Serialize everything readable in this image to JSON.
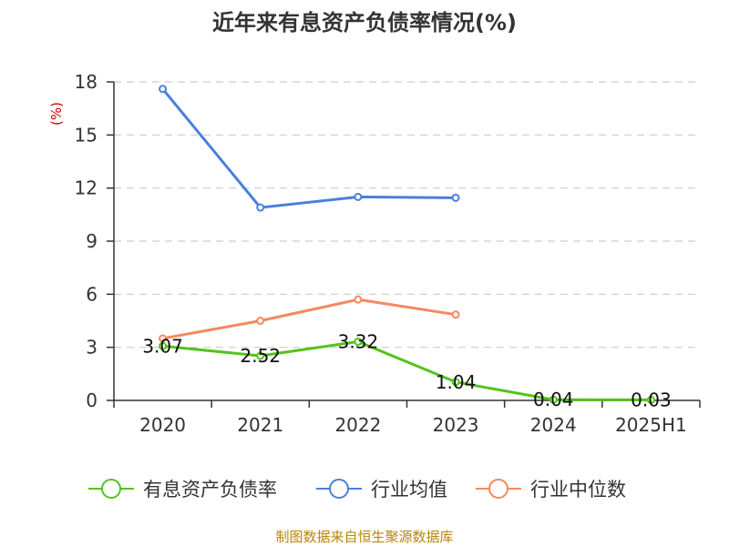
{
  "chart_data": {
    "type": "line",
    "title": "近年来有息资产负债率情况(%)",
    "ylabel": "(%)",
    "categories": [
      "2020",
      "2021",
      "2022",
      "2023",
      "2024",
      "2025H1"
    ],
    "ylim": [
      0,
      18
    ],
    "yticks": [
      0,
      3,
      6,
      9,
      12,
      15,
      18
    ],
    "grid": true,
    "legend_position": "bottom",
    "series": [
      {
        "name": "有息资产负债率",
        "color": "#52c41a",
        "values": [
          3.07,
          2.52,
          3.32,
          1.04,
          0.04,
          0.03
        ],
        "labels": [
          "3.07",
          "2.52",
          "3.32",
          "1.04",
          "0.04",
          "0.03"
        ]
      },
      {
        "name": "行业均值",
        "color": "#4a7fdb",
        "values": [
          17.6,
          10.9,
          11.5,
          11.45,
          null,
          null
        ]
      },
      {
        "name": "行业中位数",
        "color": "#f4895f",
        "values": [
          3.5,
          4.5,
          5.7,
          4.85,
          null,
          null
        ]
      }
    ],
    "source": "制图数据来自恒生聚源数据库"
  }
}
